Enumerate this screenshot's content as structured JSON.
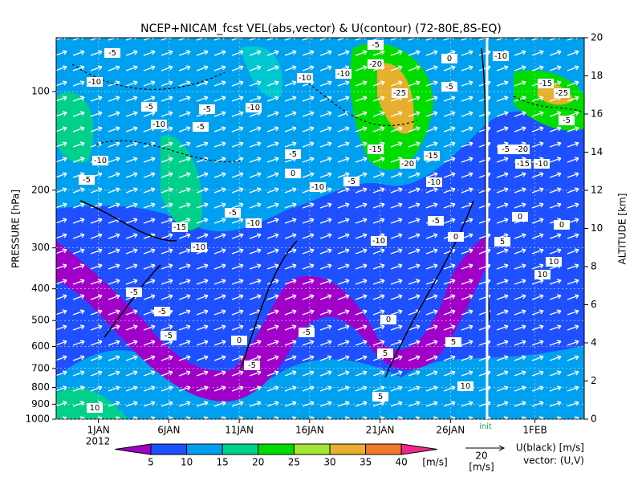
{
  "chart_data": {
    "type": "time-height",
    "title": "NCEP+NICAM_fcst VEL(abs,vector) & U(contour)   (72-80E,8S-EQ)",
    "ylabel": "PRESSURE [hPa]",
    "y2label": "ALTITUDE [km]",
    "ylog": true,
    "ylim": [
      1000,
      68.5
    ],
    "yticks": [
      100,
      200,
      300,
      400,
      500,
      600,
      700,
      800,
      900,
      1000
    ],
    "y2lim": [
      0,
      20
    ],
    "y2ticks": [
      0,
      2,
      4,
      6,
      8,
      10,
      12,
      14,
      16,
      18,
      20
    ],
    "xlim": [
      -3,
      34.5
    ],
    "xticks": [
      {
        "value": 0,
        "label": "1JAN"
      },
      {
        "value": 5,
        "label": "6JAN"
      },
      {
        "value": 10,
        "label": "11JAN"
      },
      {
        "value": 15,
        "label": "16JAN"
      },
      {
        "value": 20,
        "label": "21JAN"
      },
      {
        "value": 25,
        "label": "26JAN"
      },
      {
        "value": 31,
        "label": "1FEB"
      }
    ],
    "year": "2012",
    "init": {
      "value": 27.6,
      "label": "init",
      "color": "#ffffff",
      "label_color": "#2aa84a"
    },
    "contour_labels": [
      -5,
      -10,
      -5,
      -5,
      -10,
      -5,
      -10,
      -10,
      -5,
      -15,
      -5,
      -10,
      -10,
      -5,
      0,
      -10,
      -10,
      -10,
      -5,
      -5,
      -20,
      -25,
      -15,
      -20,
      -15,
      -10,
      -10,
      -5,
      0,
      -5,
      0,
      -5,
      -5,
      -5,
      0,
      -5,
      -5,
      0,
      5,
      5,
      5,
      10,
      -10,
      -15,
      -25,
      -5,
      -20,
      -15,
      -10,
      -5,
      0,
      0,
      5,
      10,
      10,
      10
    ],
    "colorbar": {
      "levels": [
        5,
        10,
        15,
        20,
        25,
        30,
        35,
        40
      ],
      "colors": [
        "#a000c8",
        "#1e50ff",
        "#00a0f0",
        "#00d08c",
        "#00dc00",
        "#a0e632",
        "#e6af2d",
        "#f07828",
        "#f0288c"
      ],
      "unit": "[m/s]"
    },
    "vector_key": {
      "value": 20,
      "unit": "[m/s]"
    },
    "legend_text": [
      "U(black) [m/s]",
      "vector: (U,V)"
    ]
  }
}
